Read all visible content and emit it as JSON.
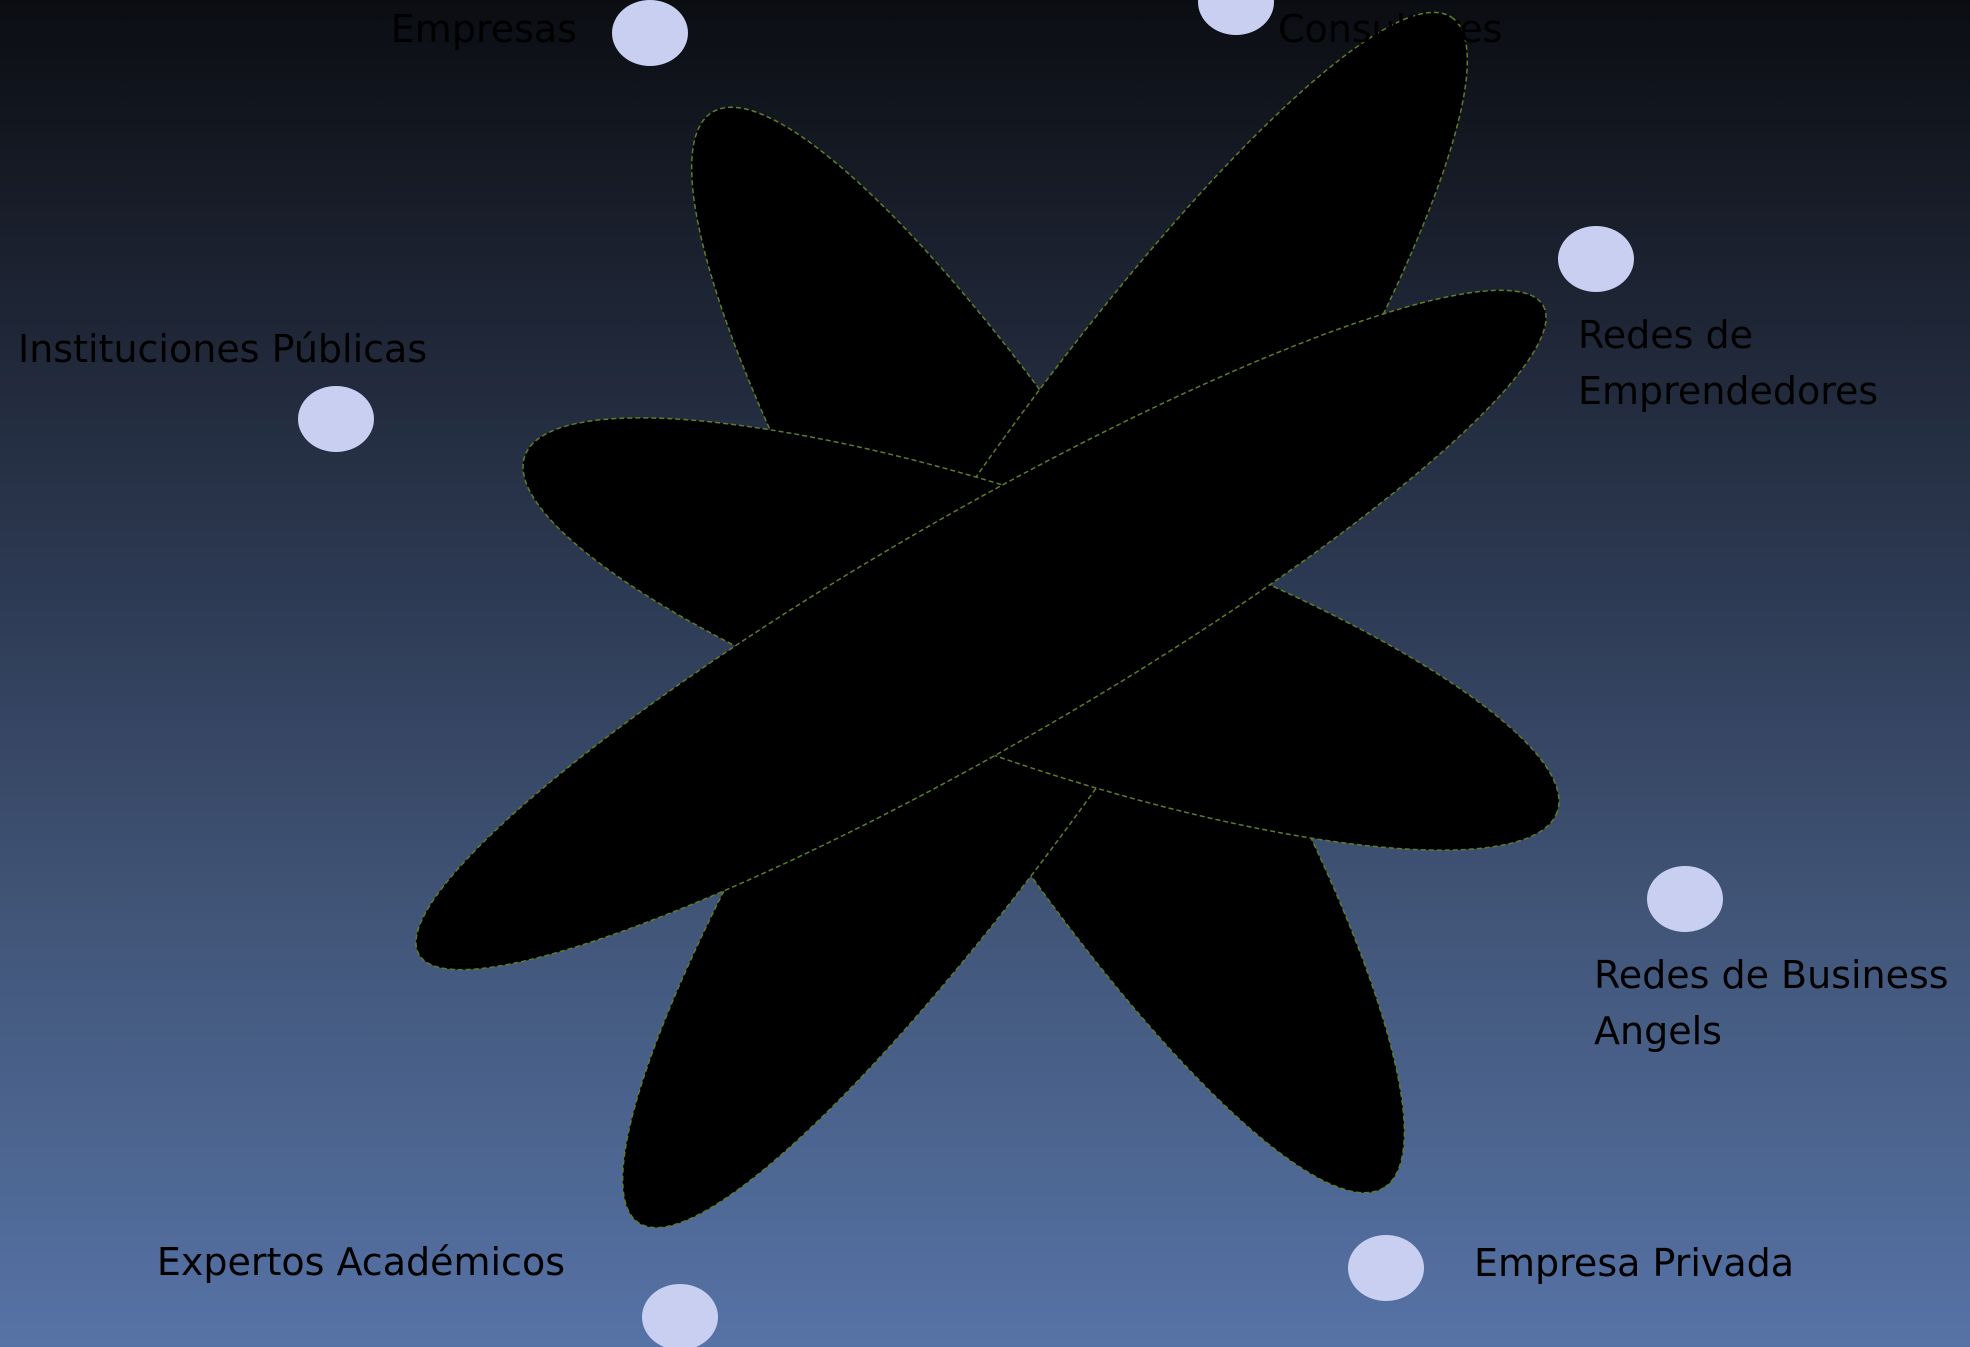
{
  "diagram": {
    "colors": {
      "petal_fill": "#000000",
      "petal_stroke": "#5c7d2a",
      "node_fill": "#c9cff0",
      "label_text": "#000000"
    },
    "nodes": [
      {
        "id": "empresas",
        "label_lines": [
          "Empresas"
        ]
      },
      {
        "id": "consultores",
        "label_lines": [
          "Consultores"
        ]
      },
      {
        "id": "redes-emprendedores",
        "label_lines": [
          "Redes de",
          "Emprendedores"
        ]
      },
      {
        "id": "instituciones-publicas",
        "label_lines": [
          "Instituciones Públicas"
        ]
      },
      {
        "id": "redes-business-angels",
        "label_lines": [
          "Redes de Business",
          "Angels"
        ]
      },
      {
        "id": "expertos-academicos",
        "label_lines": [
          "Expertos Académicos"
        ]
      },
      {
        "id": "empresa-privada",
        "label_lines": [
          "Empresa Privada"
        ]
      }
    ]
  }
}
